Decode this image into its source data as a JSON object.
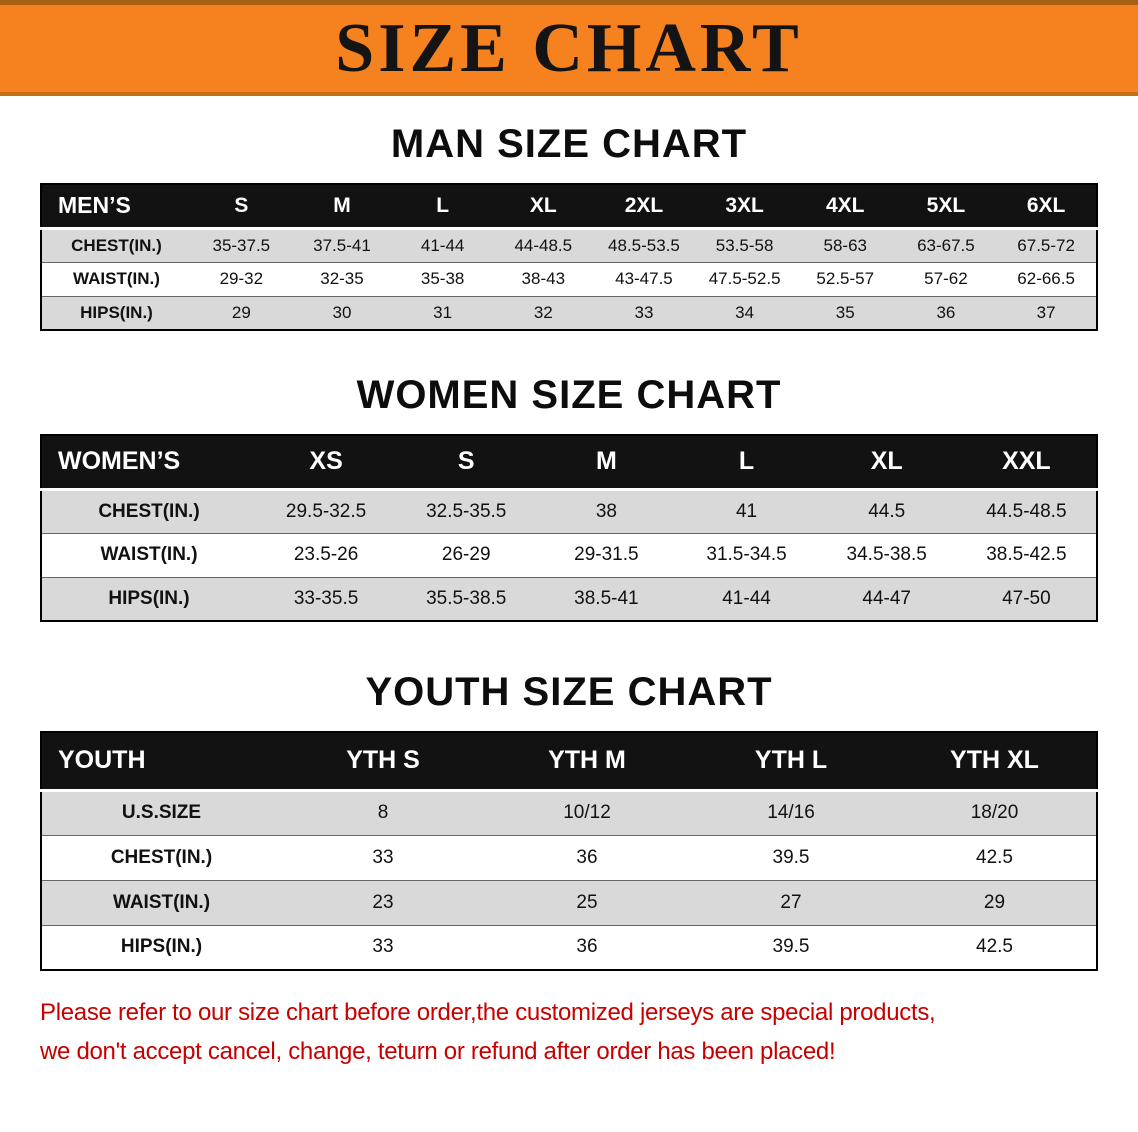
{
  "banner": {
    "title": "SIZE CHART",
    "bg_color": "#f5821f"
  },
  "sections": [
    {
      "heading": "MAN SIZE CHART",
      "table": {
        "header": [
          "MEN’S",
          "S",
          "M",
          "L",
          "XL",
          "2XL",
          "3XL",
          "4XL",
          "5XL",
          "6XL"
        ],
        "rows": [
          [
            "CHEST(IN.)",
            "35-37.5",
            "37.5-41",
            "41-44",
            "44-48.5",
            "48.5-53.5",
            "53.5-58",
            "58-63",
            "63-67.5",
            "67.5-72"
          ],
          [
            "WAIST(IN.)",
            "29-32",
            "32-35",
            "35-38",
            "38-43",
            "43-47.5",
            "47.5-52.5",
            "52.5-57",
            "57-62",
            "62-66.5"
          ],
          [
            "HIPS(IN.)",
            "29",
            "30",
            "31",
            "32",
            "33",
            "34",
            "35",
            "36",
            "37"
          ]
        ]
      }
    },
    {
      "heading": "WOMEN SIZE CHART",
      "table": {
        "header": [
          "WOMEN’S",
          "XS",
          "S",
          "M",
          "L",
          "XL",
          "XXL"
        ],
        "rows": [
          [
            "CHEST(IN.)",
            "29.5-32.5",
            "32.5-35.5",
            "38",
            "41",
            "44.5",
            "44.5-48.5"
          ],
          [
            "WAIST(IN.)",
            "23.5-26",
            "26-29",
            "29-31.5",
            "31.5-34.5",
            "34.5-38.5",
            "38.5-42.5"
          ],
          [
            "HIPS(IN.)",
            "33-35.5",
            "35.5-38.5",
            "38.5-41",
            "41-44",
            "44-47",
            "47-50"
          ]
        ]
      }
    },
    {
      "heading": "YOUTH SIZE CHART",
      "table": {
        "header": [
          "YOUTH",
          "YTH S",
          "YTH M",
          "YTH L",
          "YTH XL"
        ],
        "rows": [
          [
            "U.S.SIZE",
            "8",
            "10/12",
            "14/16",
            "18/20"
          ],
          [
            "CHEST(IN.)",
            "33",
            "36",
            "39.5",
            "42.5"
          ],
          [
            "WAIST(IN.)",
            "23",
            "25",
            "27",
            "29"
          ],
          [
            "HIPS(IN.)",
            "33",
            "36",
            "39.5",
            "42.5"
          ]
        ]
      }
    }
  ],
  "footer_note": {
    "color": "#c70000",
    "line1": "Please refer to our size chart before order,the customized jerseys are special products,",
    "line2": "we don't accept cancel, change, teturn or refund after order has been placed!"
  }
}
